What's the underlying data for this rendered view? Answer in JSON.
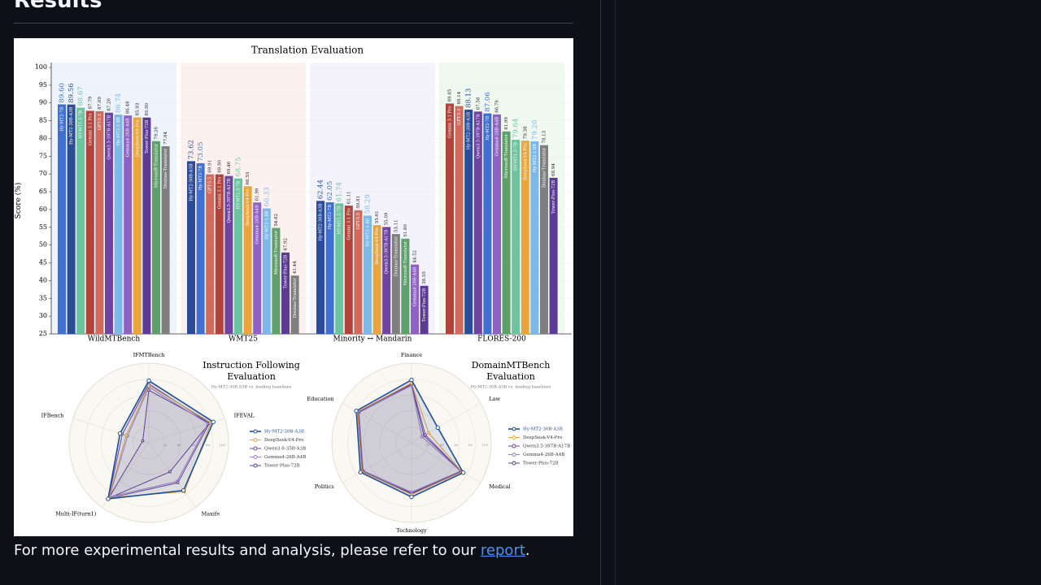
{
  "header": {
    "title": "Results"
  },
  "chart_data": [
    {
      "type": "bar",
      "title": "Translation Evaluation",
      "ylabel": "Score (%)",
      "ylim": [
        25,
        100
      ],
      "yticks": [
        25,
        30,
        35,
        40,
        45,
        50,
        55,
        60,
        65,
        70,
        75,
        80,
        85,
        90,
        95,
        100
      ],
      "grid": true,
      "groups": [
        {
          "name": "WildMTBench",
          "color": "#eef4fc",
          "models": [
            "Hy-MT2-7B",
            "Hy-MT2-30B-A3B",
            "HY-MT1.5-7B",
            "Gemini 3.1 Pro",
            "GPT-5.5",
            "Qwen3.5-397B-A17B",
            "Hy-MT2-1.8B",
            "Gemma4-26B-A4B",
            "DeepSeek-V4-Pro",
            "Tower-Plus-72B",
            "Microsoft-Translator",
            "Doubao-Translator"
          ],
          "values": [
            89.6,
            89.56,
            88.67,
            87.79,
            87.69,
            87.26,
            86.74,
            86.48,
            85.93,
            85.9,
            79.26,
            77.84
          ],
          "value_labels": [
            "89.60",
            "89.56",
            "88.67",
            "87.79",
            "87.69",
            "87.26",
            "86.74",
            "86.48",
            "85.93",
            "85.90",
            "79.26",
            "77.84"
          ],
          "colors": [
            "#3f6fd1",
            "#2b4c9b",
            "#6cc3a0",
            "#b3433a",
            "#cf6a5c",
            "#6f44a0",
            "#7cb8ea",
            "#8d62c4",
            "#e9a43c",
            "#5b3b94",
            "#5f9f6b",
            "#7f7f7f"
          ]
        },
        {
          "name": "WMT25",
          "color": "#fdf1f0",
          "models": [
            "Hy-MT2-30B-A3B",
            "Hy-MT2-7B",
            "GPT-5.5",
            "Gemini 3.1 Pro",
            "Qwen3.5-397B-A17B",
            "HY-MT1.5-7B",
            "DeepSeek-V4-Pro",
            "Gemma4-26B-A4B",
            "Hy-MT2-1.8B",
            "Microsoft-Translator",
            "Tower-Plus-72B",
            "Doubao-Translator"
          ],
          "values": [
            73.62,
            73.05,
            69.91,
            69.9,
            69.46,
            68.75,
            66.53,
            61.99,
            60.33,
            54.82,
            47.92,
            41.44
          ],
          "value_labels": [
            "73.62",
            "73.05",
            "69.91",
            "69.90",
            "69.46",
            "68.75",
            "66.53",
            "61.99",
            "60.33",
            "54.82",
            "47.92",
            "41.44"
          ],
          "colors": [
            "#2b4c9b",
            "#3f6fd1",
            "#cf6a5c",
            "#b3433a",
            "#6f44a0",
            "#6cc3a0",
            "#e9a43c",
            "#8d62c4",
            "#7cb8ea",
            "#5f9f6b",
            "#5b3b94",
            "#7f7f7f"
          ]
        },
        {
          "name": "Minority ↔ Mandarin",
          "color": "#f4f3fc",
          "models": [
            "Hy-MT2-30B-A3B",
            "Hy-MT2-7B",
            "HY-MT1.5-7B",
            "Gemini 3.1 Pro",
            "GPT-5.5",
            "Hy-MT2-1.8B",
            "DeepSeek-V4-Pro",
            "Qwen3.5-397B-A17B",
            "Doubao-Translator",
            "Microsoft-Translator",
            "Gemma4-26B-A4B",
            "Tower-Plus-72B"
          ],
          "values": [
            62.44,
            62.05,
            61.74,
            61.11,
            59.81,
            58.29,
            55.61,
            55.09,
            53.11,
            51.8,
            44.52,
            38.55
          ],
          "value_labels": [
            "62.44",
            "62.05",
            "61.74",
            "61.11",
            "59.81",
            "58.29",
            "55.61",
            "55.09",
            "53.11",
            "51.80",
            "44.52",
            "38.55"
          ],
          "colors": [
            "#2b4c9b",
            "#3f6fd1",
            "#6cc3a0",
            "#b3433a",
            "#cf6a5c",
            "#7cb8ea",
            "#e9a43c",
            "#6f44a0",
            "#7f7f7f",
            "#5f9f6b",
            "#8d62c4",
            "#5b3b94"
          ]
        },
        {
          "name": "FLORES-200",
          "color": "#eff9ef",
          "models": [
            "Gemini 3.1 Pro",
            "GPT-5.5",
            "Hy-MT2-30B-A3B",
            "Qwen3.5-397B-A17B",
            "Hy-MT2-7B",
            "Gemma4-26B-A4B",
            "Microsoft-Translator",
            "HY-MT1.5-7B",
            "DeepSeek-V4-Pro",
            "Hy-MT2-1.8B",
            "Doubao-Translator",
            "Tower-Plus-72B"
          ],
          "values": [
            89.85,
            89.14,
            88.13,
            87.58,
            87.06,
            86.78,
            81.99,
            79.64,
            79.38,
            79.2,
            78.13,
            68.94
          ],
          "value_labels": [
            "89.85",
            "89.14",
            "88.13",
            "87.58",
            "87.06",
            "86.78",
            "81.99",
            "79.64",
            "79.38",
            "79.20",
            "78.13",
            "68.94"
          ],
          "colors": [
            "#b3433a",
            "#cf6a5c",
            "#2b4c9b",
            "#6f44a0",
            "#3f6fd1",
            "#8d62c4",
            "#5f9f6b",
            "#6cc3a0",
            "#e9a43c",
            "#7cb8ea",
            "#7f7f7f",
            "#5b3b94"
          ]
        }
      ]
    },
    {
      "type": "radar",
      "title": [
        "Instruction Following",
        "Evaluation"
      ],
      "subtitle": "Hy-MT2-30B-A3B vs. leading baselines",
      "axes": [
        "IFMTBench",
        "IFEVAL",
        "Maxife",
        "Multi-IF(turn1)",
        "IFBench"
      ],
      "rlim": [
        0,
        100
      ],
      "rticks": [
        20,
        40,
        60,
        80,
        100
      ],
      "series": [
        {
          "name": "Hy-MT2-30B-A3B",
          "color": "#1f4e9c",
          "values": [
            78,
            85,
            74,
            87,
            38
          ]
        },
        {
          "name": "DeepSeek-V4-Pro",
          "color": "#e9a43c",
          "values": [
            72,
            82,
            76,
            85,
            30
          ]
        },
        {
          "name": "Qwen3.6-35B-A3B",
          "color": "#6f44a0",
          "values": [
            74,
            80,
            62,
            86,
            35
          ]
        },
        {
          "name": "Gemma4-26B-A4B",
          "color": "#9b7fd0",
          "values": [
            70,
            78,
            60,
            84,
            28
          ]
        },
        {
          "name": "Tower-Plus-72B",
          "color": "#5b3b94",
          "values": [
            66,
            80,
            45,
            86,
            8
          ]
        }
      ]
    },
    {
      "type": "radar",
      "title": [
        "DomainMTBench",
        "Evaluation"
      ],
      "subtitle": "Hy-MT2-30B-A3B vs. leading baselines",
      "axes": [
        "Finance",
        "Law",
        "Medical",
        "Technology",
        "Politics",
        "Education"
      ],
      "rlim": [
        0,
        100
      ],
      "rticks": [
        20,
        40,
        60,
        80,
        100
      ],
      "series": [
        {
          "name": "Hy-MT2-30B-A3B",
          "color": "#1f4e9c",
          "values": [
            79,
            38,
            75,
            68,
            74,
            80
          ]
        },
        {
          "name": "DeepSeek-V4-Pro",
          "color": "#e9a43c",
          "values": [
            75,
            25,
            73,
            65,
            72,
            78
          ]
        },
        {
          "name": "Qwen3.5-397B-A17B",
          "color": "#6f44a0",
          "values": [
            74,
            20,
            72,
            64,
            71,
            77
          ]
        },
        {
          "name": "Gemma4-26B-A4B",
          "color": "#9b7fd0",
          "values": [
            72,
            15,
            71,
            62,
            70,
            76
          ]
        },
        {
          "name": "Tower-Plus-72B",
          "color": "#5b3b94",
          "values": [
            73,
            18,
            72,
            63,
            72,
            78
          ]
        }
      ]
    }
  ],
  "footer": {
    "text": "For more experimental results and analysis, please refer to our ",
    "link": "report",
    "end": "."
  }
}
